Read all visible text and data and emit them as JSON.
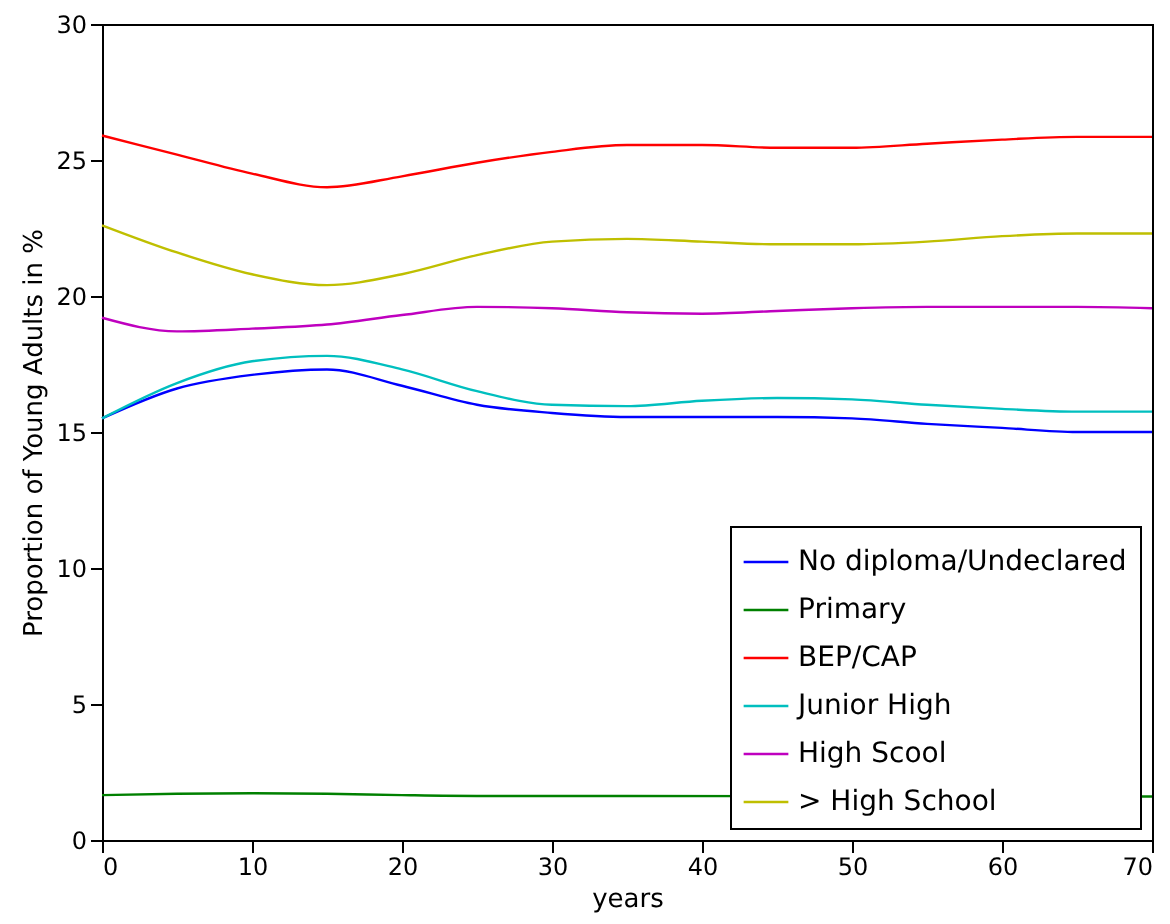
{
  "chart_data": {
    "type": "line",
    "xlabel": "years",
    "ylabel": "Proportion of Young Adults in %",
    "x": [
      0,
      5,
      10,
      15,
      20,
      25,
      30,
      35,
      40,
      45,
      50,
      55,
      60,
      65,
      70
    ],
    "xlim": [
      0,
      70
    ],
    "xticks": [
      0,
      10,
      20,
      30,
      40,
      50,
      60,
      70
    ],
    "ylim": [
      0,
      30
    ],
    "yticks": [
      0,
      5,
      10,
      15,
      20,
      25,
      30
    ],
    "grid": false,
    "legend": "bottom right",
    "line_style": "solid",
    "marker": "none",
    "series": [
      {
        "name": "No diploma/Undeclared",
        "color": "#0000ff",
        "values": [
          15.5,
          16.6,
          17.1,
          17.3,
          16.7,
          16.0,
          15.7,
          15.55,
          15.55,
          15.55,
          15.5,
          15.3,
          15.15,
          15.0,
          15.0
        ]
      },
      {
        "name": "Primary",
        "color": "#008000",
        "x": [
          0,
          5,
          10,
          15,
          20,
          25,
          30,
          35,
          69.5,
          70
        ],
        "values": [
          1.65,
          1.7,
          1.72,
          1.7,
          1.65,
          1.62,
          1.62,
          1.62,
          1.6,
          1.6
        ]
      },
      {
        "name": "BEP/CAP",
        "color": "#ff0000",
        "values": [
          25.9,
          25.2,
          24.5,
          24.0,
          24.4,
          24.9,
          25.3,
          25.55,
          25.55,
          25.45,
          25.45,
          25.6,
          25.75,
          25.85,
          25.85
        ]
      },
      {
        "name": "Junior High",
        "color": "#00bfbf",
        "values": [
          15.5,
          16.8,
          17.6,
          17.8,
          17.3,
          16.5,
          16.0,
          15.95,
          16.15,
          16.25,
          16.2,
          16.0,
          15.85,
          15.75,
          15.75
        ]
      },
      {
        "name": "High Scool",
        "color": "#bf00bf",
        "values": [
          19.2,
          18.7,
          18.8,
          18.95,
          19.3,
          19.6,
          19.55,
          19.4,
          19.35,
          19.45,
          19.55,
          19.6,
          19.6,
          19.6,
          19.55
        ]
      },
      {
        "name": "> High School",
        "color": "#bfbf00",
        "values": [
          22.6,
          21.6,
          20.8,
          20.4,
          20.8,
          21.5,
          22.0,
          22.1,
          22.0,
          21.9,
          21.9,
          22.0,
          22.2,
          22.3,
          22.3
        ]
      }
    ]
  }
}
